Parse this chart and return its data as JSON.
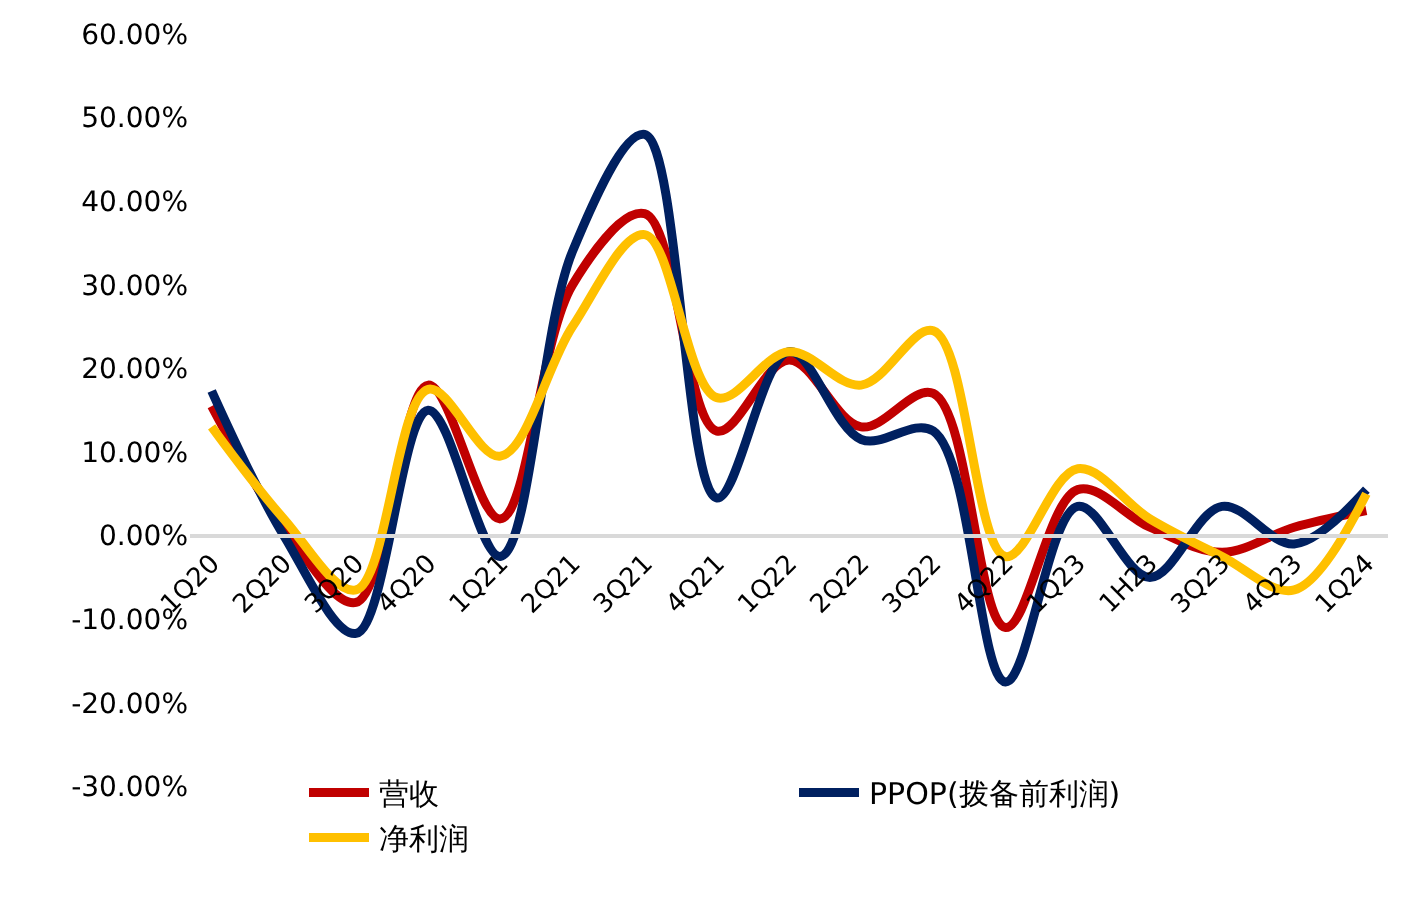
{
  "chart_data": {
    "type": "line",
    "categories": [
      "1Q20",
      "2Q20",
      "3Q20",
      "4Q20",
      "1Q21",
      "2Q21",
      "3Q21",
      "4Q21",
      "1Q22",
      "2Q22",
      "3Q22",
      "4Q22",
      "1Q23",
      "1H23",
      "3Q23",
      "4Q23",
      "1Q24"
    ],
    "series": [
      {
        "name": "营收",
        "color": "#c00000",
        "values": [
          15.5,
          1,
          -8,
          18,
          2,
          30,
          38.5,
          12.5,
          21,
          13,
          17,
          -11,
          5.5,
          1,
          -2,
          1,
          3
        ]
      },
      {
        "name": "PPOP(拨备前利润)",
        "color": "#002060",
        "values": [
          17.3,
          0,
          -11.7,
          15,
          -2.5,
          34,
          48,
          4.5,
          22,
          11.5,
          12.5,
          -17.5,
          3.5,
          -5,
          3.5,
          -1,
          5.5
        ]
      },
      {
        "name": "净利润",
        "color": "#ffc000",
        "values": [
          13,
          2,
          -6.5,
          17.5,
          9.5,
          25,
          36,
          16.5,
          22,
          18,
          24.5,
          -2.5,
          8,
          2,
          -2.5,
          -6.5,
          5
        ]
      }
    ],
    "ylim": [
      -30,
      60
    ],
    "yticks": [
      {
        "value": -30,
        "label": "-30.00%"
      },
      {
        "value": -20,
        "label": "-20.00%"
      },
      {
        "value": -10,
        "label": "-10.00%"
      },
      {
        "value": 0,
        "label": "0.00%"
      },
      {
        "value": 10,
        "label": "10.00%"
      },
      {
        "value": 20,
        "label": "20.00%"
      },
      {
        "value": 30,
        "label": "30.00%"
      },
      {
        "value": 40,
        "label": "40.00%"
      },
      {
        "value": 50,
        "label": "50.00%"
      },
      {
        "value": 60,
        "label": "60.00%"
      }
    ],
    "legend": "bottom",
    "marker": "none",
    "line_style": "solid"
  }
}
